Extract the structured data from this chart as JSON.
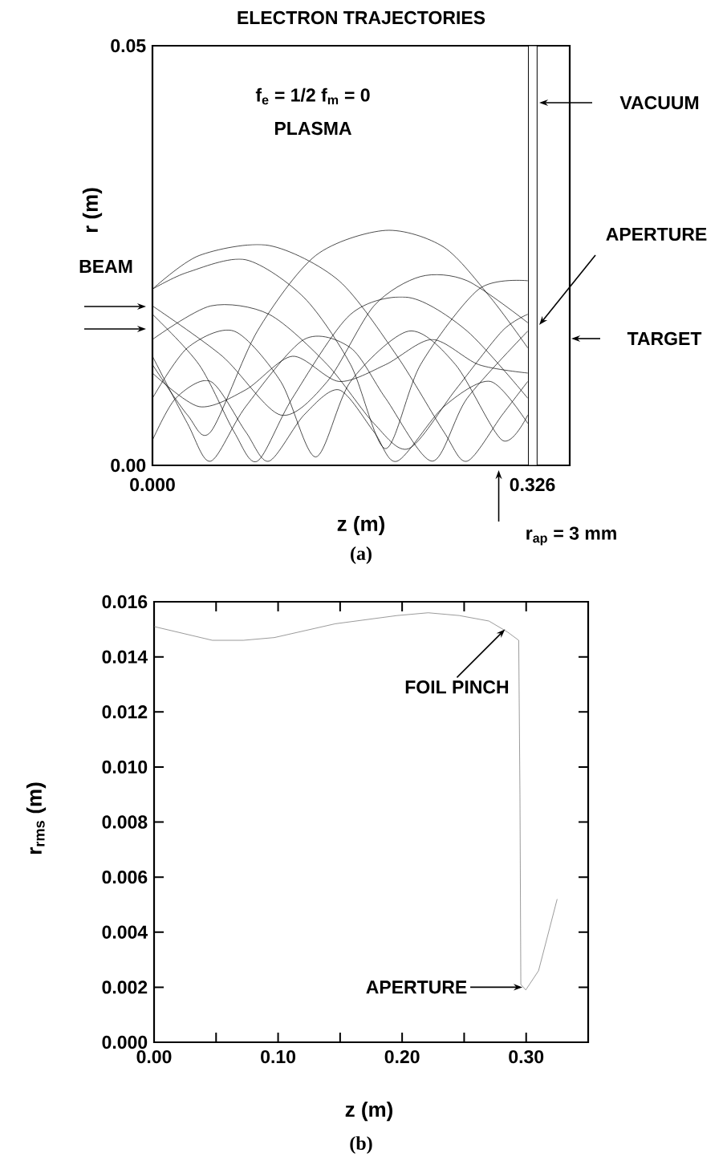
{
  "chart_data": [
    {
      "type": "line",
      "title": "ELECTRON TRAJECTORIES",
      "xlabel": "z (m)",
      "ylabel": "r (m)",
      "xlim": [
        0,
        0.358
      ],
      "ylim": [
        0,
        0.05
      ],
      "xticks": [
        {
          "value": 0,
          "label": "0.000"
        },
        {
          "value": 0.326,
          "label": "0.326"
        }
      ],
      "yticks": [
        {
          "value": 0,
          "label": "0.00"
        },
        {
          "value": 0.05,
          "label": "0.05"
        }
      ],
      "bands": [
        {
          "axis": "x",
          "from": 0.3225,
          "to": 0.33,
          "color": "#ffffff"
        }
      ],
      "annotations": [
        "f$_{e}$ = 1/2   f$_{m}$ = 0",
        "PLASMA",
        "VACUUM",
        "APERTURE",
        "BEAM",
        "TARGET",
        "r$_{ap}$ = 3 mm",
        "(a)"
      ],
      "series": [
        {
          "color": "#000000",
          "x": [
            0,
            0.04,
            0.1,
            0.16,
            0.21,
            0.25,
            0.27,
            0.3,
            0.322
          ],
          "values": [
            0.021,
            0.025,
            0.0262,
            0.022,
            0.013,
            0.004,
            0.0005,
            0.006,
            0.01
          ]
        },
        {
          "color": "#000000",
          "x": [
            0,
            0.03,
            0.05,
            0.09,
            0.14,
            0.2,
            0.25,
            0.29,
            0.322
          ],
          "values": [
            0.012,
            0.006,
            0.004,
            0.016,
            0.025,
            0.028,
            0.026,
            0.02,
            0.014
          ]
        },
        {
          "color": "#000000",
          "x": [
            0,
            0.03,
            0.08,
            0.13,
            0.17,
            0.2,
            0.23,
            0.28,
            0.322
          ],
          "values": [
            0.021,
            0.023,
            0.0245,
            0.02,
            0.012,
            0.002,
            0.012,
            0.021,
            0.022
          ]
        },
        {
          "color": "#000000",
          "x": [
            0,
            0.04,
            0.07,
            0.09,
            0.12,
            0.17,
            0.22,
            0.27,
            0.322
          ],
          "values": [
            0.018,
            0.012,
            0.004,
            0.0005,
            0.008,
            0.018,
            0.02,
            0.016,
            0.008
          ]
        },
        {
          "color": "#000000",
          "x": [
            0,
            0.03,
            0.07,
            0.11,
            0.14,
            0.17,
            0.22,
            0.26,
            0.3,
            0.322
          ],
          "values": [
            0.008,
            0.014,
            0.016,
            0.01,
            0.001,
            0.01,
            0.016,
            0.012,
            0.003,
            0.006
          ]
        },
        {
          "color": "#000000",
          "x": [
            0,
            0.03,
            0.05,
            0.08,
            0.13,
            0.17,
            0.2,
            0.24,
            0.27,
            0.322
          ],
          "values": [
            0.013,
            0.005,
            0.0005,
            0.007,
            0.015,
            0.014,
            0.008,
            0.0005,
            0.008,
            0.016
          ]
        },
        {
          "color": "#000000",
          "x": [
            0,
            0.02,
            0.05,
            0.08,
            0.1,
            0.13,
            0.16,
            0.19,
            0.21,
            0.25,
            0.29,
            0.322
          ],
          "values": [
            0.003,
            0.008,
            0.01,
            0.004,
            0.0005,
            0.006,
            0.009,
            0.004,
            0.0005,
            0.007,
            0.01,
            0.005
          ]
        },
        {
          "color": "#000000",
          "x": [
            0,
            0.05,
            0.1,
            0.15,
            0.19,
            0.22,
            0.26,
            0.3,
            0.322
          ],
          "values": [
            0.015,
            0.019,
            0.018,
            0.012,
            0.005,
            0.002,
            0.009,
            0.016,
            0.018
          ]
        },
        {
          "color": "#000000",
          "x": [
            0,
            0.04,
            0.08,
            0.12,
            0.16,
            0.2,
            0.24,
            0.28,
            0.322
          ],
          "values": [
            0.011,
            0.007,
            0.009,
            0.013,
            0.01,
            0.012,
            0.015,
            0.012,
            0.011
          ]
        },
        {
          "color": "#000000",
          "x": [
            0,
            0.06,
            0.11,
            0.15,
            0.19,
            0.23,
            0.27,
            0.322
          ],
          "values": [
            0.019,
            0.013,
            0.006,
            0.01,
            0.019,
            0.0225,
            0.022,
            0.017
          ]
        }
      ]
    },
    {
      "type": "line",
      "xlabel": "z (m)",
      "ylabel": "r$_{rms}$ (m)",
      "xlim": [
        0,
        0.35
      ],
      "ylim": [
        0,
        0.016
      ],
      "xticks": [
        {
          "value": 0,
          "label": "0.00"
        },
        {
          "value": 0.05,
          "label": null
        },
        {
          "value": 0.1,
          "label": "0.10"
        },
        {
          "value": 0.15,
          "label": null
        },
        {
          "value": 0.2,
          "label": "0.20"
        },
        {
          "value": 0.25,
          "label": null
        },
        {
          "value": 0.3,
          "label": "0.30"
        }
      ],
      "yticks": [
        {
          "value": 0,
          "label": "0.000"
        },
        {
          "value": 0.002,
          "label": "0.002"
        },
        {
          "value": 0.004,
          "label": "0.004"
        },
        {
          "value": 0.006,
          "label": "0.006"
        },
        {
          "value": 0.008,
          "label": "0.008"
        },
        {
          "value": 0.01,
          "label": "0.010"
        },
        {
          "value": 0.012,
          "label": "0.012"
        },
        {
          "value": 0.014,
          "label": "0.014"
        },
        {
          "value": 0.016,
          "label": "0.016"
        }
      ],
      "annotations": [
        {
          "text": "FOIL PINCH",
          "x": 0.283,
          "y": 0.015
        },
        {
          "text": "APERTURE",
          "x": 0.297,
          "y": 0.002
        },
        "(b)"
      ],
      "series": [
        {
          "color": "#707070",
          "x": [
            0,
            0.047,
            0.072,
            0.097,
            0.146,
            0.196,
            0.221,
            0.246,
            0.27,
            0.285,
            0.294,
            0.295,
            0.2957,
            0.2997,
            0.31,
            0.325
          ],
          "values": [
            0.0151,
            0.0146,
            0.0146,
            0.0147,
            0.0152,
            0.0155,
            0.0156,
            0.0155,
            0.0153,
            0.0149,
            0.0146,
            0.009,
            0.0021,
            0.0019,
            0.0026,
            0.0052
          ]
        }
      ]
    }
  ]
}
